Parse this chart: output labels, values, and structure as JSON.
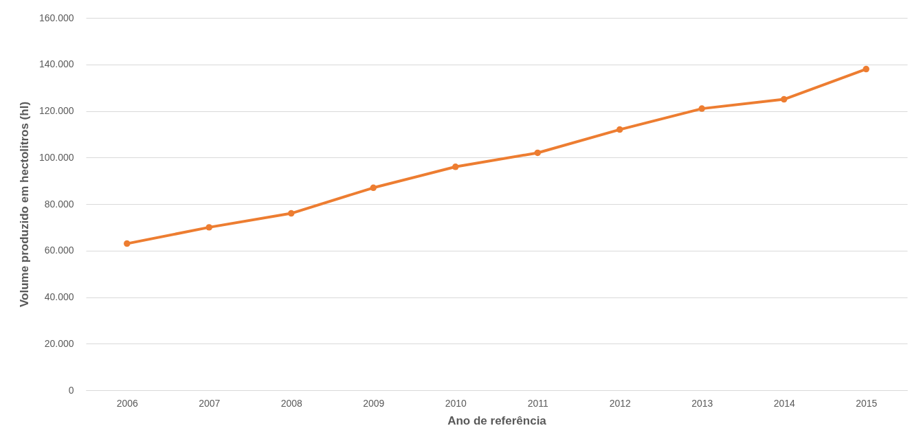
{
  "chart_data": {
    "type": "line",
    "xlabel": "Ano de referência",
    "ylabel": "Volume produzido em hectolitros (hl)",
    "categories": [
      "2006",
      "2007",
      "2008",
      "2009",
      "2010",
      "2011",
      "2012",
      "2013",
      "2014",
      "2015"
    ],
    "series": [
      {
        "color": "#ed7d31",
        "values": [
          63000,
          70000,
          76000,
          87000,
          96000,
          102000,
          112000,
          121000,
          125000,
          138000
        ]
      }
    ],
    "ylim": [
      0,
      160000
    ],
    "yticks": [
      0,
      {
        "value": 20000,
        "label": "20.000"
      },
      {
        "value": 40000,
        "label": "40.000"
      },
      {
        "value": 60000,
        "label": "60.000"
      },
      {
        "value": 80000,
        "label": "80.000"
      },
      {
        "value": 100000,
        "label": "100.000"
      },
      {
        "value": 120000,
        "label": "120.000"
      },
      {
        "value": 140000,
        "label": "140.000"
      },
      {
        "value": 160000,
        "label": "160.000"
      }
    ],
    "grid": "y",
    "marker": "circle"
  }
}
